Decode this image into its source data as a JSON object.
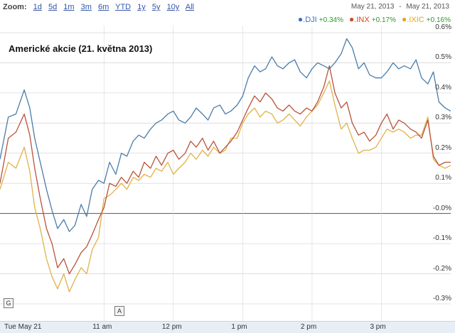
{
  "toolbar": {
    "zoom_label": "Zoom:",
    "zoom_options": [
      "1d",
      "5d",
      "1m",
      "3m",
      "6m",
      "YTD",
      "1y",
      "5y",
      "10y",
      "All"
    ]
  },
  "date_range": {
    "start": "May 21, 2013",
    "separator": "-",
    "end": "May 21, 2013"
  },
  "legend": [
    {
      "symbol": ".DJI",
      "change": "+0.34%",
      "color": "#3a6fc4"
    },
    {
      "symbol": ".INX",
      "change": "+0.17%",
      "color": "#cc4a1e"
    },
    {
      "symbol": ".IXIC",
      "change": "+0.16%",
      "color": "#e6a320"
    }
  ],
  "markers": {
    "g": "G",
    "a": "A"
  },
  "colors": {
    "grid": "#d8d8d8",
    "zero_line": "#555555",
    "dji": "#4a7cab",
    "inx": "#b8533a",
    "ixic": "#e0b24a"
  },
  "chart_data": {
    "type": "line",
    "title": "Americké akcie (21. května 2013)",
    "ylim": [
      -0.3,
      0.6
    ],
    "y_ticks": [
      "0.6%",
      "0.5%",
      "0.4%",
      "0.3%",
      "0.2%",
      "0.1%",
      "-0.0%",
      "-0.1%",
      "-0.2%",
      "-0.3%"
    ],
    "x_ticks": [
      "Tue May 21",
      "11 am",
      "12 pm",
      "1 pm",
      "2 pm",
      "3 pm"
    ],
    "x_tick_hours": [
      9.5,
      11,
      12,
      13,
      14,
      15
    ],
    "xlim_hours": [
      9.5,
      16
    ],
    "grid": true,
    "legend_position": "top-right",
    "series": [
      {
        "name": ".DJI",
        "color": "#4a7cab",
        "x": [
          9.5,
          9.62,
          9.73,
          9.85,
          9.93,
          10.0,
          10.08,
          10.17,
          10.25,
          10.33,
          10.42,
          10.5,
          10.58,
          10.67,
          10.75,
          10.83,
          10.92,
          11.0,
          11.08,
          11.17,
          11.25,
          11.33,
          11.42,
          11.5,
          11.58,
          11.67,
          11.75,
          11.83,
          11.92,
          12.0,
          12.08,
          12.17,
          12.25,
          12.33,
          12.42,
          12.5,
          12.58,
          12.67,
          12.75,
          12.83,
          12.92,
          13.0,
          13.08,
          13.17,
          13.25,
          13.33,
          13.42,
          13.5,
          13.58,
          13.67,
          13.75,
          13.83,
          13.92,
          14.0,
          14.08,
          14.17,
          14.25,
          14.33,
          14.42,
          14.5,
          14.58,
          14.67,
          14.75,
          14.83,
          14.92,
          15.0,
          15.08,
          15.17,
          15.25,
          15.33,
          15.42,
          15.5,
          15.58,
          15.67,
          15.75,
          15.83,
          15.92,
          16.0
        ],
        "values": [
          0.18,
          0.32,
          0.33,
          0.41,
          0.35,
          0.25,
          0.17,
          0.08,
          0.01,
          -0.05,
          -0.02,
          -0.06,
          -0.04,
          0.03,
          -0.01,
          0.08,
          0.11,
          0.1,
          0.17,
          0.13,
          0.2,
          0.19,
          0.24,
          0.26,
          0.25,
          0.28,
          0.3,
          0.31,
          0.33,
          0.34,
          0.31,
          0.3,
          0.32,
          0.35,
          0.33,
          0.31,
          0.35,
          0.36,
          0.33,
          0.34,
          0.36,
          0.39,
          0.45,
          0.49,
          0.47,
          0.48,
          0.52,
          0.49,
          0.48,
          0.5,
          0.51,
          0.47,
          0.45,
          0.48,
          0.5,
          0.49,
          0.48,
          0.5,
          0.53,
          0.58,
          0.55,
          0.48,
          0.5,
          0.46,
          0.45,
          0.45,
          0.47,
          0.5,
          0.48,
          0.49,
          0.48,
          0.51,
          0.45,
          0.43,
          0.47,
          0.37,
          0.35,
          0.34
        ]
      },
      {
        "name": ".INX",
        "color": "#b8533a",
        "x": [
          9.5,
          9.62,
          9.73,
          9.85,
          9.93,
          10.0,
          10.08,
          10.17,
          10.25,
          10.33,
          10.42,
          10.5,
          10.58,
          10.67,
          10.75,
          10.83,
          10.92,
          11.0,
          11.08,
          11.17,
          11.25,
          11.33,
          11.42,
          11.5,
          11.58,
          11.67,
          11.75,
          11.83,
          11.92,
          12.0,
          12.08,
          12.17,
          12.25,
          12.33,
          12.42,
          12.5,
          12.58,
          12.67,
          12.75,
          12.83,
          12.92,
          13.0,
          13.08,
          13.17,
          13.25,
          13.33,
          13.42,
          13.5,
          13.58,
          13.67,
          13.75,
          13.83,
          13.92,
          14.0,
          14.08,
          14.17,
          14.25,
          14.33,
          14.42,
          14.5,
          14.58,
          14.67,
          14.75,
          14.83,
          14.92,
          15.0,
          15.08,
          15.17,
          15.25,
          15.33,
          15.42,
          15.5,
          15.58,
          15.67,
          15.75,
          15.83,
          15.92,
          16.0
        ],
        "values": [
          0.1,
          0.25,
          0.27,
          0.33,
          0.26,
          0.15,
          0.05,
          -0.05,
          -0.1,
          -0.18,
          -0.15,
          -0.2,
          -0.17,
          -0.13,
          -0.11,
          -0.07,
          -0.02,
          0.02,
          0.1,
          0.09,
          0.12,
          0.1,
          0.14,
          0.12,
          0.17,
          0.15,
          0.19,
          0.16,
          0.2,
          0.21,
          0.18,
          0.2,
          0.24,
          0.22,
          0.25,
          0.21,
          0.24,
          0.2,
          0.22,
          0.24,
          0.27,
          0.31,
          0.35,
          0.39,
          0.37,
          0.4,
          0.38,
          0.35,
          0.34,
          0.36,
          0.34,
          0.33,
          0.35,
          0.34,
          0.37,
          0.42,
          0.49,
          0.4,
          0.35,
          0.37,
          0.3,
          0.26,
          0.27,
          0.24,
          0.26,
          0.3,
          0.33,
          0.28,
          0.31,
          0.3,
          0.28,
          0.27,
          0.25,
          0.31,
          0.19,
          0.16,
          0.17,
          0.17
        ]
      },
      {
        "name": ".IXIC",
        "color": "#e0b24a",
        "x": [
          9.5,
          9.62,
          9.73,
          9.85,
          9.93,
          10.0,
          10.08,
          10.17,
          10.25,
          10.33,
          10.42,
          10.5,
          10.58,
          10.67,
          10.75,
          10.83,
          10.92,
          11.0,
          11.08,
          11.17,
          11.25,
          11.33,
          11.42,
          11.5,
          11.58,
          11.67,
          11.75,
          11.83,
          11.92,
          12.0,
          12.08,
          12.17,
          12.25,
          12.33,
          12.42,
          12.5,
          12.58,
          12.67,
          12.75,
          12.83,
          12.92,
          13.0,
          13.08,
          13.17,
          13.25,
          13.33,
          13.42,
          13.5,
          13.58,
          13.67,
          13.75,
          13.83,
          13.92,
          14.0,
          14.08,
          14.17,
          14.25,
          14.33,
          14.42,
          14.5,
          14.58,
          14.67,
          14.75,
          14.83,
          14.92,
          15.0,
          15.08,
          15.17,
          15.25,
          15.33,
          15.42,
          15.5,
          15.58,
          15.67,
          15.75,
          15.83,
          15.92,
          16.0
        ],
        "values": [
          0.08,
          0.17,
          0.15,
          0.22,
          0.14,
          0.02,
          -0.05,
          -0.15,
          -0.21,
          -0.25,
          -0.2,
          -0.26,
          -0.22,
          -0.18,
          -0.2,
          -0.12,
          -0.08,
          0.05,
          0.06,
          0.08,
          0.1,
          0.08,
          0.12,
          0.11,
          0.13,
          0.12,
          0.15,
          0.14,
          0.17,
          0.13,
          0.15,
          0.17,
          0.2,
          0.18,
          0.21,
          0.19,
          0.22,
          0.2,
          0.21,
          0.25,
          0.25,
          0.3,
          0.33,
          0.35,
          0.32,
          0.34,
          0.33,
          0.3,
          0.31,
          0.33,
          0.31,
          0.29,
          0.32,
          0.34,
          0.36,
          0.4,
          0.44,
          0.36,
          0.28,
          0.3,
          0.25,
          0.2,
          0.21,
          0.21,
          0.22,
          0.25,
          0.28,
          0.27,
          0.28,
          0.27,
          0.25,
          0.26,
          0.26,
          0.32,
          0.18,
          0.16,
          0.15,
          0.16
        ]
      }
    ]
  }
}
